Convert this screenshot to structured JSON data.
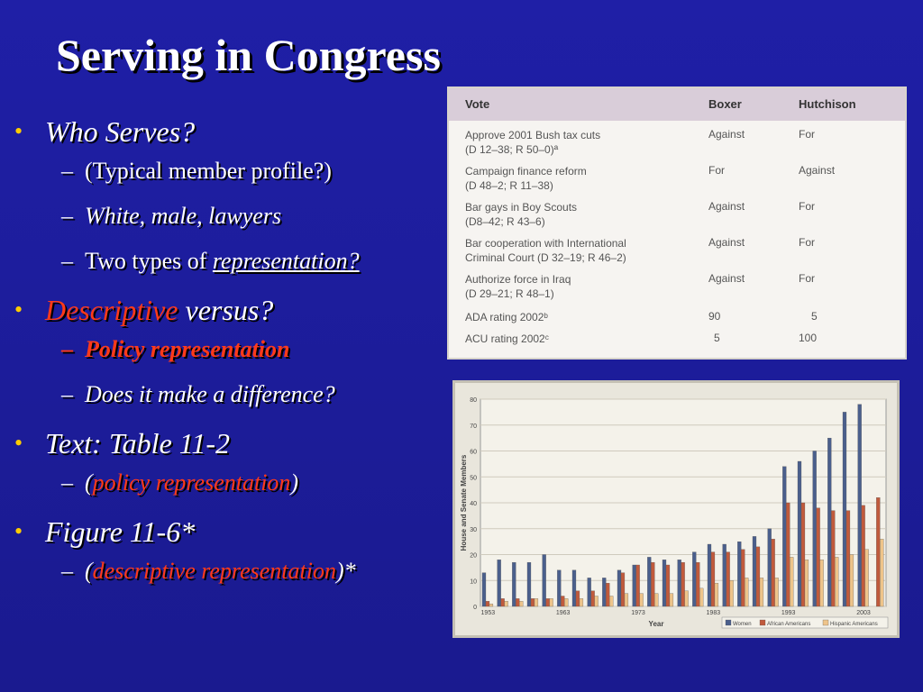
{
  "slide": {
    "title": "Serving in Congress",
    "bullets": {
      "who_serves": "Who Serves?",
      "typical_profile": "(Typical member profile?)",
      "white_male_lawyers": "White, male, lawyers",
      "two_types_prefix": "Two types of ",
      "two_types_link": "representation?",
      "descriptive": "Descriptive",
      "versus": " versus?",
      "policy_representation": "Policy representation",
      "difference": "Does it make a difference?",
      "text_table": "Text: Table 11-2",
      "paren_open": "(",
      "policy_rep_sub": "policy representation",
      "paren_close": ")",
      "figure": "Figure 11-6*",
      "descriptive_rep_sub": "descriptive representation",
      "paren_close_star": ")*"
    },
    "dash": "–",
    "dot": "•"
  },
  "vote_table": {
    "headers": {
      "vote": "Vote",
      "boxer": "Boxer",
      "hutchison": "Hutchison"
    },
    "rows": [
      {
        "line1": "Approve 2001 Bush tax cuts",
        "line2": "(D 12–38; R 50–0)ª",
        "boxer": "Against",
        "hutchison": "For"
      },
      {
        "line1": "Campaign finance reform",
        "line2": "(D 48–2; R 11–38)",
        "boxer": "For",
        "hutchison": "Against"
      },
      {
        "line1": "Bar gays in Boy Scouts",
        "line2": "(D8–42; R 43–6)",
        "boxer": "Against",
        "hutchison": "For"
      },
      {
        "line1": "Bar cooperation with International",
        "line2": "Criminal Court (D 32–19; R 46–2)",
        "boxer": "Against",
        "hutchison": "For"
      },
      {
        "line1": "Authorize force in Iraq",
        "line2": "(D 29–21; R 48–1)",
        "boxer": "Against",
        "hutchison": "For"
      },
      {
        "line1": "ADA rating 2002ᵇ",
        "line2": "",
        "boxer": "90",
        "hutchison": "5"
      },
      {
        "line1": "ACU rating 2002ᶜ",
        "line2": "",
        "boxer": "5",
        "hutchison": "100"
      }
    ]
  },
  "chart_data": {
    "type": "bar",
    "title": "",
    "xlabel": "Year",
    "ylabel": "House and Senate Members",
    "ylim": [
      0,
      80
    ],
    "yticks": [
      0,
      10,
      20,
      30,
      40,
      50,
      60,
      70,
      80
    ],
    "xtick_labels": [
      "1953",
      "1963",
      "1973",
      "1983",
      "1993",
      "2003"
    ],
    "categories": [
      "1953",
      "1955",
      "1957",
      "1959",
      "1961",
      "1963",
      "1965",
      "1967",
      "1969",
      "1971",
      "1973",
      "1975",
      "1977",
      "1979",
      "1981",
      "1983",
      "1985",
      "1987",
      "1989",
      "1991",
      "1993",
      "1995",
      "1997",
      "1999",
      "2001",
      "2003",
      "2005"
    ],
    "series": [
      {
        "name": "Women",
        "color": "#4a5f8c",
        "values": [
          13,
          18,
          17,
          17,
          20,
          14,
          14,
          11,
          11,
          14,
          16,
          19,
          18,
          18,
          21,
          24,
          24,
          25,
          27,
          30,
          54,
          56,
          60,
          65,
          75,
          78,
          0
        ]
      },
      {
        "name": "African Americans",
        "color": "#c05a3c",
        "values": [
          2,
          3,
          3,
          3,
          3,
          4,
          6,
          6,
          9,
          13,
          16,
          17,
          16,
          17,
          17,
          21,
          21,
          22,
          23,
          26,
          40,
          40,
          38,
          37,
          37,
          39,
          42
        ]
      },
      {
        "name": "Hispanic Americans",
        "color": "#eec48a",
        "values": [
          1,
          2,
          2,
          3,
          3,
          3,
          3,
          4,
          4,
          5,
          5,
          5,
          5,
          6,
          7,
          9,
          10,
          11,
          11,
          11,
          19,
          18,
          18,
          19,
          20,
          22,
          26
        ]
      }
    ],
    "legend_position": "bottom-right",
    "grid": true
  }
}
